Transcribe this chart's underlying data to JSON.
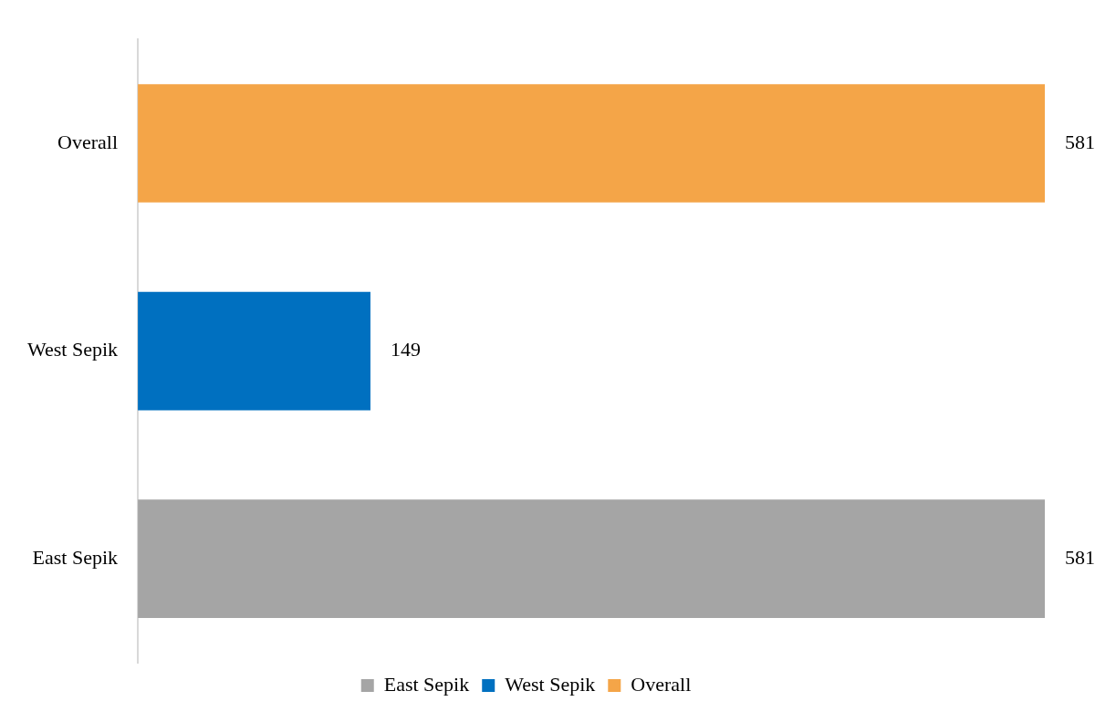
{
  "chart_data": {
    "type": "bar",
    "orientation": "horizontal",
    "categories": [
      "Overall",
      "West Sepik",
      "East Sepik"
    ],
    "series": [
      {
        "name": "East Sepik",
        "color": "#a5a5a5",
        "values": [
          null,
          null,
          581
        ]
      },
      {
        "name": "West Sepik",
        "color": "#0070c0",
        "values": [
          null,
          149,
          null
        ]
      },
      {
        "name": "Overall",
        "color": "#f4a548",
        "values": [
          581,
          null,
          null
        ]
      }
    ],
    "data_labels": true,
    "grid": false,
    "legend": "bottom",
    "tick_labels": "y"
  }
}
